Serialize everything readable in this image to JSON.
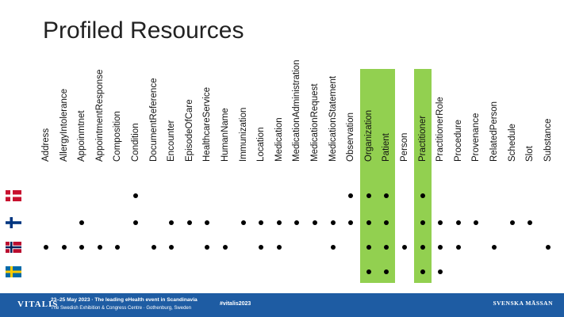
{
  "title": "Profiled Resources",
  "highlight_color": "#92d050",
  "columns": [
    "Address",
    "AllergyIntolerance",
    "Appoinmtnet",
    "AppointmentResponse",
    "Composition",
    "Condition",
    "DocumentReference",
    "Encounter",
    "EpisodeOfCare",
    "HealthcareService",
    "HumanName",
    "Immunization",
    "Location",
    "Medication",
    "MedicationAdministration",
    "MedicationRequest",
    "MedicationStatement",
    "Observation",
    "Organization",
    "Patient",
    "Person",
    "Practitioner",
    "PractitionerRole",
    "Procedure",
    "Provenance",
    "RelatedPerson",
    "Schedule",
    "Slot",
    "Substance"
  ],
  "highlighted_columns": [
    "Organization",
    "Patient",
    "Practitioner"
  ],
  "rows": [
    {
      "country": "Denmark",
      "flag_icon": "denmark-flag-icon",
      "resources": [
        "Condition",
        "Observation",
        "Organization",
        "Patient",
        "Practitioner"
      ]
    },
    {
      "country": "Finland",
      "flag_icon": "finland-flag-icon",
      "resources": [
        "Appoinmtnet",
        "Condition",
        "Encounter",
        "EpisodeOfCare",
        "HealthcareService",
        "Immunization",
        "Location",
        "Medication",
        "MedicationAdministration",
        "MedicationRequest",
        "MedicationStatement",
        "Observation",
        "Organization",
        "Patient",
        "Practitioner",
        "PractitionerRole",
        "Procedure",
        "Provenance",
        "Schedule",
        "Slot"
      ]
    },
    {
      "country": "Norway",
      "flag_icon": "norway-flag-icon",
      "resources": [
        "Address",
        "AllergyIntolerance",
        "Appoinmtnet",
        "AppointmentResponse",
        "Composition",
        "DocumentReference",
        "Encounter",
        "HealthcareService",
        "HumanName",
        "Location",
        "Medication",
        "MedicationStatement",
        "Organization",
        "Patient",
        "Person",
        "Practitioner",
        "PractitionerRole",
        "Procedure",
        "RelatedPerson",
        "Substance"
      ]
    },
    {
      "country": "Sweden",
      "flag_icon": "sweden-flag-icon",
      "resources": [
        "Organization",
        "Patient",
        "Practitioner",
        "PractitionerRole"
      ]
    }
  ],
  "footer": {
    "logo": "VITALIS",
    "line1": "23–25 May 2023 · The leading eHealth event in Scandinavia",
    "line2": "The Swedish Exhibition & Congress Centre · Gothenburg, Sweden",
    "hashtag": "#vitalis2023",
    "right_logo": "SVENSKA MÄSSAN",
    "background": "#1e5ca3"
  }
}
